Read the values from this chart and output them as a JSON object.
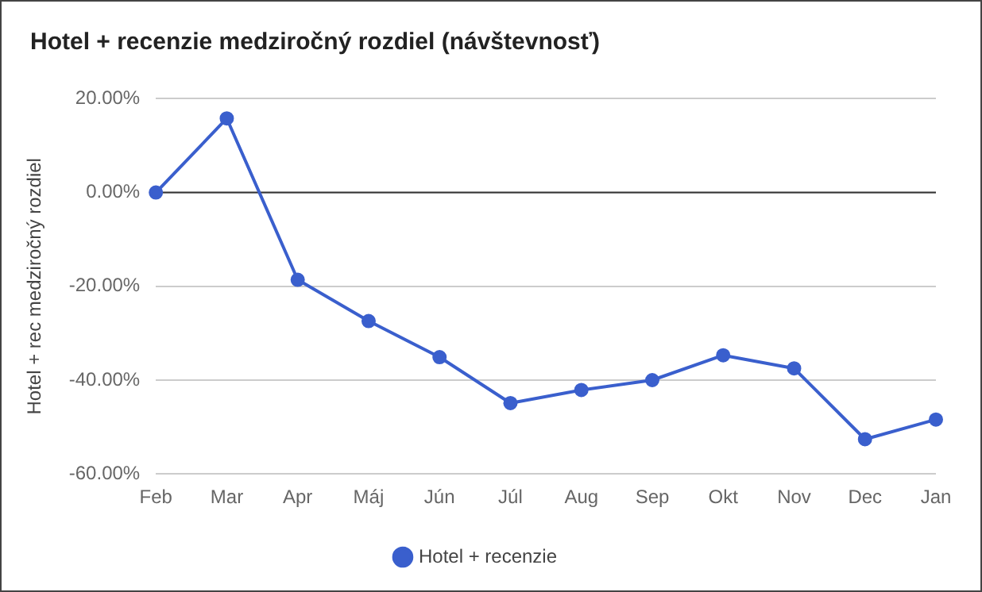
{
  "chart_data": {
    "type": "line",
    "title": "Hotel + recenzie medziročný rozdiel (návštevnosť)",
    "ylabel": "Hotel + rec medziročný rozdiel",
    "categories": [
      "Feb",
      "Mar",
      "Apr",
      "Máj",
      "Jún",
      "Júl",
      "Aug",
      "Sep",
      "Okt",
      "Nov",
      "Dec",
      "Jan"
    ],
    "series": [
      {
        "name": "Hotel + recenzie",
        "color": "#3a5fcd",
        "values": [
          0,
          15.8,
          -18.6,
          -27.4,
          -35.1,
          -44.9,
          -42.1,
          -40,
          -34.7,
          -37.5,
          -52.6,
          -48.4
        ]
      }
    ],
    "ylim": [
      -60,
      20
    ],
    "yticks": [
      {
        "value": -60,
        "label": "-60.00%"
      },
      {
        "value": -40,
        "label": "-40.00%"
      },
      {
        "value": -20,
        "label": "-20.00%"
      },
      {
        "value": 0,
        "label": "0.00%"
      },
      {
        "value": 20,
        "label": "20.00%"
      }
    ],
    "ref_lines": [
      {
        "axis": "y",
        "value": 0,
        "color": "#333333"
      }
    ],
    "grid": "y",
    "legend": "bottom",
    "marker": "circle",
    "line_style": "solid"
  }
}
